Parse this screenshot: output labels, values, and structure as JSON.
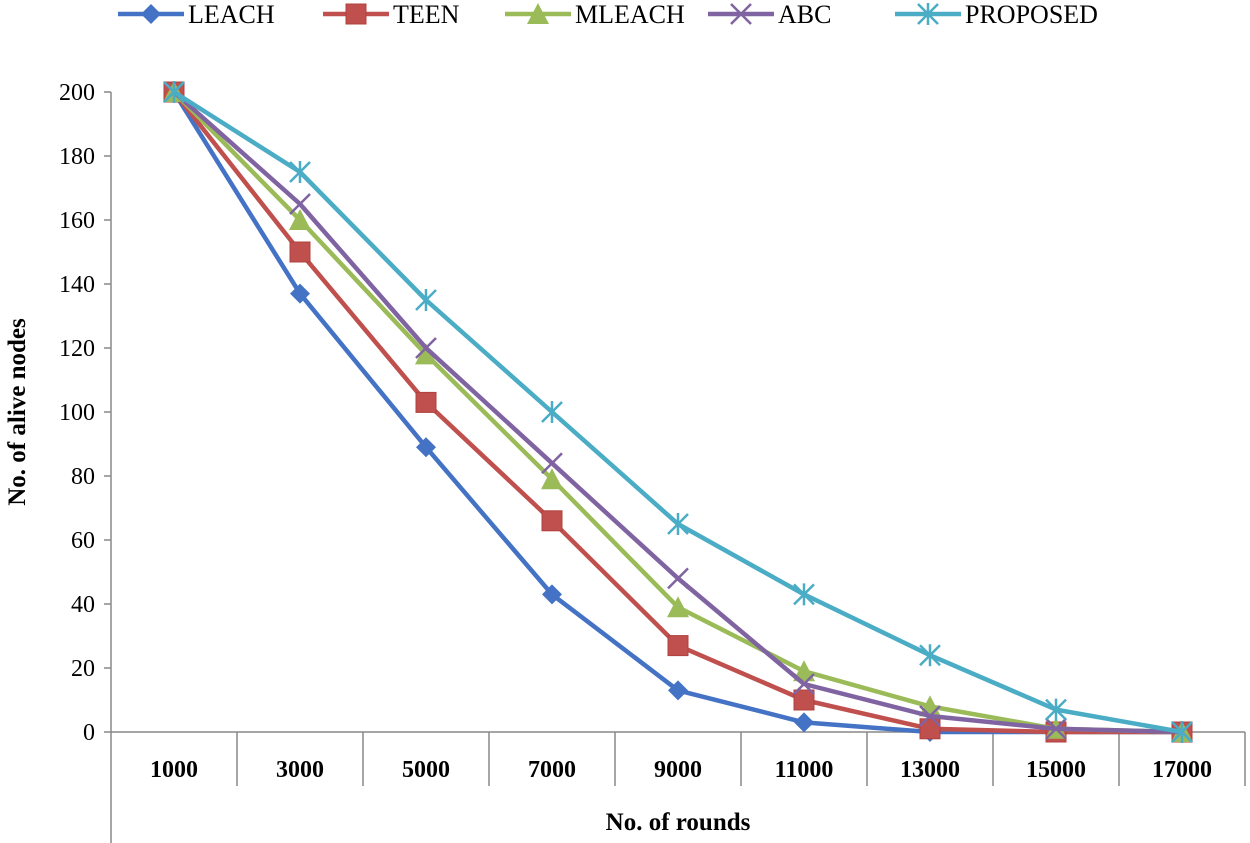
{
  "chart_data": {
    "type": "line",
    "title": "",
    "xlabel": "No. of rounds",
    "ylabel": "No. of alive nodes",
    "categories": [
      "1000",
      "3000",
      "5000",
      "7000",
      "9000",
      "11000",
      "13000",
      "15000",
      "17000"
    ],
    "ylim": [
      0,
      200
    ],
    "yticks": [
      0,
      20,
      40,
      60,
      80,
      100,
      120,
      140,
      160,
      180,
      200
    ],
    "grid": false,
    "legend_position": "top",
    "series": [
      {
        "name": "LEACH",
        "color": "#4472C4",
        "marker": "diamond",
        "values": [
          200,
          137,
          89,
          43,
          13,
          3,
          0,
          0,
          0
        ]
      },
      {
        "name": "TEEN",
        "color": "#C0504D",
        "marker": "square",
        "values": [
          200,
          150,
          103,
          66,
          27,
          10,
          1,
          0,
          0
        ]
      },
      {
        "name": "MLEACH",
        "color": "#9BBB59",
        "marker": "triangle",
        "values": [
          200,
          160,
          118,
          79,
          39,
          19,
          8,
          1,
          0
        ]
      },
      {
        "name": "ABC",
        "color": "#8064A2",
        "marker": "x",
        "values": [
          200,
          165,
          120,
          84,
          48,
          15,
          5,
          1,
          0
        ]
      },
      {
        "name": "PROPOSED",
        "color": "#4BACC6",
        "marker": "star",
        "values": [
          200,
          175,
          135,
          100,
          65,
          43,
          24,
          7,
          0
        ]
      }
    ]
  }
}
